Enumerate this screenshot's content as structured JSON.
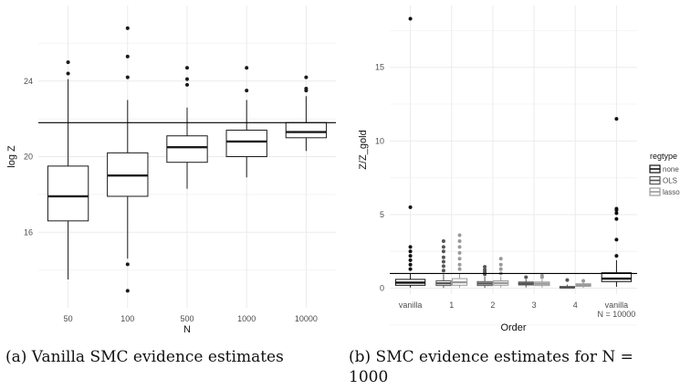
{
  "chart_data": [
    {
      "type": "boxplot",
      "xlabel": "N",
      "ylabel": "log Z",
      "ylim": [
        12.0,
        28.0
      ],
      "yticks": [
        16,
        20,
        24
      ],
      "categories": [
        "50",
        "100",
        "500",
        "1000",
        "10000"
      ],
      "hline": 21.8,
      "grid": true,
      "boxes": [
        {
          "category": "50",
          "whisker_low": 13.5,
          "q1": 16.6,
          "median": 17.9,
          "q3": 19.5,
          "whisker_high": 24.1,
          "outliers": [
            24.4,
            25.0
          ]
        },
        {
          "category": "100",
          "whisker_low": 14.6,
          "q1": 17.9,
          "median": 19.0,
          "q3": 20.2,
          "whisker_high": 23.0,
          "outliers": [
            24.2,
            25.3,
            26.8,
            14.3,
            12.9
          ]
        },
        {
          "category": "500",
          "whisker_low": 18.3,
          "q1": 19.7,
          "median": 20.5,
          "q3": 21.1,
          "whisker_high": 22.6,
          "outliers": [
            23.8,
            24.1,
            24.7
          ]
        },
        {
          "category": "1000",
          "whisker_low": 18.9,
          "q1": 20.0,
          "median": 20.8,
          "q3": 21.4,
          "whisker_high": 23.0,
          "outliers": [
            23.5,
            24.7
          ]
        },
        {
          "category": "10000",
          "whisker_low": 20.3,
          "q1": 21.0,
          "median": 21.3,
          "q3": 21.8,
          "whisker_high": 23.2,
          "outliers": [
            23.5,
            23.6,
            24.2
          ]
        }
      ]
    },
    {
      "type": "boxplot",
      "xlabel": "Order",
      "ylabel": "Z/Z_gold",
      "ylim": [
        -0.4,
        19.2
      ],
      "yticks": [
        0,
        5,
        10,
        15
      ],
      "categories": [
        "vanilla",
        "1",
        "2",
        "3",
        "4",
        "vanilla\nN = 10000"
      ],
      "hline": 1.0,
      "grid": true,
      "legend": {
        "title": "regtype",
        "entries": [
          "none",
          "OLS",
          "lasso"
        ],
        "placement": "right"
      },
      "series": [
        {
          "name": "none",
          "color": "#111111",
          "boxes": [
            {
              "category": "vanilla",
              "whisker_low": 0.05,
              "q1": 0.2,
              "median": 0.38,
              "q3": 0.6,
              "whisker_high": 1.0,
              "outliers": [
                1.3,
                1.6,
                1.9,
                2.2,
                2.5,
                2.8,
                5.5,
                18.3
              ]
            },
            {
              "category": "vanilla\nN = 10000",
              "whisker_low": 0.1,
              "q1": 0.45,
              "median": 0.65,
              "q3": 1.05,
              "whisker_high": 1.9,
              "outliers": [
                2.2,
                3.3,
                4.7,
                5.1,
                5.3,
                5.4,
                11.5
              ]
            }
          ]
        },
        {
          "name": "OLS",
          "color": "#555555",
          "boxes": [
            {
              "category": "1",
              "whisker_low": 0.02,
              "q1": 0.18,
              "median": 0.33,
              "q3": 0.5,
              "whisker_high": 0.95,
              "outliers": [
                1.2,
                1.5,
                1.8,
                2.1,
                2.5,
                2.8,
                3.2
              ]
            },
            {
              "category": "2",
              "whisker_low": 0.02,
              "q1": 0.18,
              "median": 0.32,
              "q3": 0.45,
              "whisker_high": 0.8,
              "outliers": [
                0.95,
                1.1,
                1.25,
                1.45
              ]
            },
            {
              "category": "3",
              "whisker_low": 0.05,
              "q1": 0.22,
              "median": 0.32,
              "q3": 0.42,
              "whisker_high": 0.6,
              "outliers": [
                0.75
              ]
            },
            {
              "category": "4",
              "whisker_low": 0.0,
              "q1": 0.02,
              "median": 0.05,
              "q3": 0.12,
              "whisker_high": 0.25,
              "outliers": [
                0.55
              ]
            }
          ]
        },
        {
          "name": "lasso",
          "color": "#9a9a9a",
          "boxes": [
            {
              "category": "1",
              "whisker_low": 0.05,
              "q1": 0.2,
              "median": 0.4,
              "q3": 0.65,
              "whisker_high": 1.0,
              "outliers": [
                1.3,
                1.6,
                2.0,
                2.4,
                2.8,
                3.2,
                3.6
              ]
            },
            {
              "category": "2",
              "whisker_low": 0.05,
              "q1": 0.2,
              "median": 0.35,
              "q3": 0.5,
              "whisker_high": 0.8,
              "outliers": [
                1.0,
                1.3,
                1.6,
                2.0
              ]
            },
            {
              "category": "3",
              "whisker_low": 0.05,
              "q1": 0.18,
              "median": 0.3,
              "q3": 0.42,
              "whisker_high": 0.6,
              "outliers": [
                0.75,
                0.85
              ]
            },
            {
              "category": "4",
              "whisker_low": 0.02,
              "q1": 0.12,
              "median": 0.22,
              "q3": 0.3,
              "whisker_high": 0.4,
              "outliers": [
                0.5
              ]
            }
          ]
        }
      ]
    }
  ],
  "captions": {
    "left": "(a) Vanilla SMC evidence estimates",
    "right_line1": "(b) SMC evidence estimates for N =",
    "right_line2": "1000"
  }
}
